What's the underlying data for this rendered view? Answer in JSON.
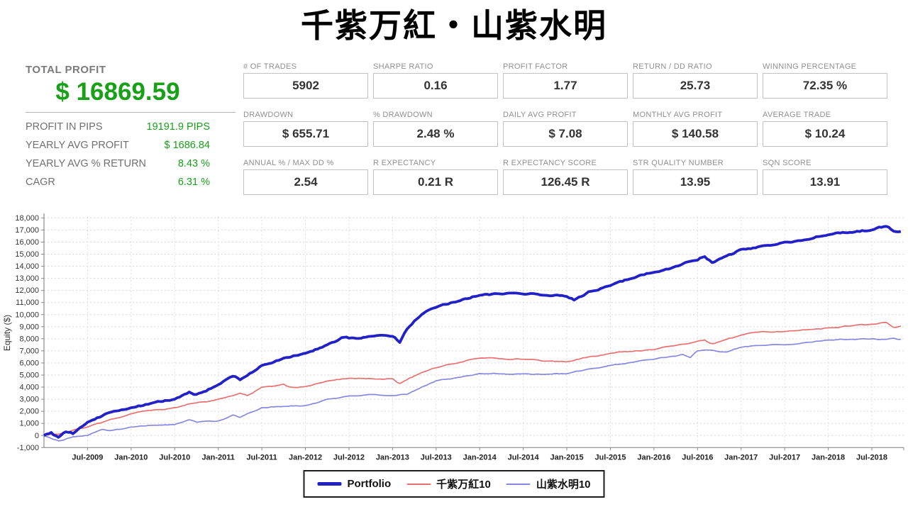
{
  "title": "千紫万紅・山紫水明",
  "colors": {
    "profit_green": "#18a018",
    "label_gray": "#8f8f8f",
    "value_dark": "#333333",
    "grid_line": "#d6d6d6",
    "axis_line": "#8c8c8c"
  },
  "summary": {
    "total_profit_label": "TOTAL PROFIT",
    "total_profit_value": "$ 16869.59",
    "rows": [
      {
        "label": "PROFIT IN PIPS",
        "value": "19191.9 PIPS"
      },
      {
        "label": "YEARLY AVG PROFIT",
        "value": "$ 1686.84"
      },
      {
        "label": "YEARLY AVG % RETURN",
        "value": "8.43 %"
      },
      {
        "label": "CAGR",
        "value": "6.31 %"
      }
    ]
  },
  "stats": [
    {
      "label": "# OF TRADES",
      "value": "5902"
    },
    {
      "label": "SHARPE RATIO",
      "value": "0.16"
    },
    {
      "label": "PROFIT FACTOR",
      "value": "1.77"
    },
    {
      "label": "RETURN / DD RATIO",
      "value": "25.73"
    },
    {
      "label": "WINNING PERCENTAGE",
      "value": "72.35 %"
    },
    {
      "label": "DRAWDOWN",
      "value": "$ 655.71"
    },
    {
      "label": "% DRAWDOWN",
      "value": "2.48 %"
    },
    {
      "label": "DAILY AVG PROFIT",
      "value": "$ 7.08"
    },
    {
      "label": "MONTHLY AVG PROFIT",
      "value": "$ 140.58"
    },
    {
      "label": "AVERAGE TRADE",
      "value": "$ 10.24"
    },
    {
      "label": "ANNUAL % / MAX DD %",
      "value": "2.54"
    },
    {
      "label": "R EXPECTANCY",
      "value": "0.21 R"
    },
    {
      "label": "R EXPECTANCY SCORE",
      "value": "126.45 R"
    },
    {
      "label": "STR QUALITY NUMBER",
      "value": "13.95"
    },
    {
      "label": "SQN SCORE",
      "value": "13.91"
    }
  ],
  "chart_data": {
    "type": "line",
    "title": "",
    "xlabel": "",
    "ylabel": "Equity ($)",
    "ylim": [
      -1000,
      18000
    ],
    "ytick_step": 1000,
    "grid": true,
    "legend_position": "bottom",
    "x_unit": "months since Jan-2009",
    "x_tick_start_month": 6,
    "x_tick_step_months": 6,
    "x_tick_labels": [
      "Jul-2009",
      "Jan-2010",
      "Jul-2010",
      "Jan-2011",
      "Jul-2011",
      "Jan-2012",
      "Jul-2012",
      "Jan-2013",
      "Jul-2013",
      "Jan-2014",
      "Jul-2014",
      "Jan-2015",
      "Jul-2015",
      "Jan-2016",
      "Jul-2016",
      "Jan-2017",
      "Jul-2017",
      "Jan-2018",
      "Jul-2018"
    ],
    "series": [
      {
        "name": "Portfolio",
        "color": "#2121c6",
        "width": 3.8,
        "points": [
          [
            0,
            0
          ],
          [
            1,
            250
          ],
          [
            2,
            -150
          ],
          [
            3,
            300
          ],
          [
            4,
            150
          ],
          [
            6,
            1100
          ],
          [
            9,
            1900
          ],
          [
            12,
            2300
          ],
          [
            15,
            2700
          ],
          [
            18,
            3000
          ],
          [
            20,
            3600
          ],
          [
            21,
            3400
          ],
          [
            24,
            4200
          ],
          [
            26,
            4900
          ],
          [
            27,
            4600
          ],
          [
            30,
            5800
          ],
          [
            33,
            6400
          ],
          [
            36,
            6800
          ],
          [
            39,
            7500
          ],
          [
            41,
            8100
          ],
          [
            42,
            8050
          ],
          [
            45,
            8200
          ],
          [
            48,
            8200
          ],
          [
            49,
            7700
          ],
          [
            50,
            8800
          ],
          [
            52,
            10000
          ],
          [
            54,
            10600
          ],
          [
            57,
            11100
          ],
          [
            60,
            11600
          ],
          [
            63,
            11700
          ],
          [
            66,
            11700
          ],
          [
            69,
            11600
          ],
          [
            72,
            11500
          ],
          [
            73,
            11200
          ],
          [
            75,
            11900
          ],
          [
            78,
            12400
          ],
          [
            81,
            13000
          ],
          [
            84,
            13500
          ],
          [
            87,
            14000
          ],
          [
            90,
            14500
          ],
          [
            91,
            14800
          ],
          [
            92,
            14300
          ],
          [
            93,
            14600
          ],
          [
            96,
            15400
          ],
          [
            99,
            15700
          ],
          [
            102,
            16000
          ],
          [
            105,
            16200
          ],
          [
            108,
            16600
          ],
          [
            111,
            16800
          ],
          [
            114,
            17000
          ],
          [
            116,
            17300
          ],
          [
            117,
            16900
          ],
          [
            118,
            16870
          ]
        ]
      },
      {
        "name": "千紫万紅10",
        "color": "#e97070",
        "width": 1.7,
        "points": [
          [
            0,
            0
          ],
          [
            2,
            100
          ],
          [
            3,
            250
          ],
          [
            6,
            700
          ],
          [
            9,
            1300
          ],
          [
            12,
            1800
          ],
          [
            15,
            2100
          ],
          [
            18,
            2300
          ],
          [
            21,
            2700
          ],
          [
            24,
            3000
          ],
          [
            27,
            3500
          ],
          [
            28,
            3300
          ],
          [
            30,
            4000
          ],
          [
            33,
            4250
          ],
          [
            34,
            4000
          ],
          [
            36,
            4050
          ],
          [
            39,
            4500
          ],
          [
            42,
            4730
          ],
          [
            45,
            4700
          ],
          [
            48,
            4700
          ],
          [
            49,
            4300
          ],
          [
            52,
            5200
          ],
          [
            54,
            5600
          ],
          [
            57,
            6000
          ],
          [
            60,
            6400
          ],
          [
            63,
            6350
          ],
          [
            66,
            6300
          ],
          [
            69,
            6150
          ],
          [
            72,
            6100
          ],
          [
            75,
            6500
          ],
          [
            78,
            6800
          ],
          [
            81,
            6950
          ],
          [
            84,
            7100
          ],
          [
            87,
            7450
          ],
          [
            90,
            7800
          ],
          [
            91,
            7900
          ],
          [
            92,
            7600
          ],
          [
            93,
            7750
          ],
          [
            96,
            8300
          ],
          [
            99,
            8600
          ],
          [
            102,
            8600
          ],
          [
            105,
            8750
          ],
          [
            108,
            8900
          ],
          [
            111,
            9050
          ],
          [
            114,
            9200
          ],
          [
            116,
            9350
          ],
          [
            117,
            8950
          ],
          [
            118,
            9050
          ]
        ]
      },
      {
        "name": "山紫水明10",
        "color": "#8888e0",
        "width": 1.7,
        "points": [
          [
            0,
            -50
          ],
          [
            1,
            -250
          ],
          [
            2,
            -450
          ],
          [
            3,
            -300
          ],
          [
            4,
            -100
          ],
          [
            6,
            0
          ],
          [
            8,
            500
          ],
          [
            9,
            400
          ],
          [
            12,
            700
          ],
          [
            15,
            850
          ],
          [
            18,
            900
          ],
          [
            20,
            1300
          ],
          [
            21,
            1100
          ],
          [
            24,
            1200
          ],
          [
            26,
            1700
          ],
          [
            27,
            1500
          ],
          [
            30,
            2300
          ],
          [
            33,
            2400
          ],
          [
            36,
            2470
          ],
          [
            39,
            3000
          ],
          [
            42,
            3270
          ],
          [
            45,
            3400
          ],
          [
            48,
            3300
          ],
          [
            50,
            3400
          ],
          [
            52,
            4000
          ],
          [
            54,
            4530
          ],
          [
            57,
            4800
          ],
          [
            60,
            5120
          ],
          [
            63,
            5100
          ],
          [
            66,
            5100
          ],
          [
            69,
            5050
          ],
          [
            72,
            5100
          ],
          [
            75,
            5500
          ],
          [
            78,
            5800
          ],
          [
            81,
            6050
          ],
          [
            84,
            6300
          ],
          [
            86,
            6500
          ],
          [
            88,
            6700
          ],
          [
            89,
            6450
          ],
          [
            90,
            7000
          ],
          [
            92,
            7050
          ],
          [
            94,
            6900
          ],
          [
            96,
            7300
          ],
          [
            99,
            7450
          ],
          [
            102,
            7500
          ],
          [
            105,
            7700
          ],
          [
            108,
            7900
          ],
          [
            111,
            7950
          ],
          [
            114,
            8000
          ],
          [
            116,
            7950
          ],
          [
            117,
            8050
          ],
          [
            118,
            7950
          ]
        ]
      }
    ]
  }
}
